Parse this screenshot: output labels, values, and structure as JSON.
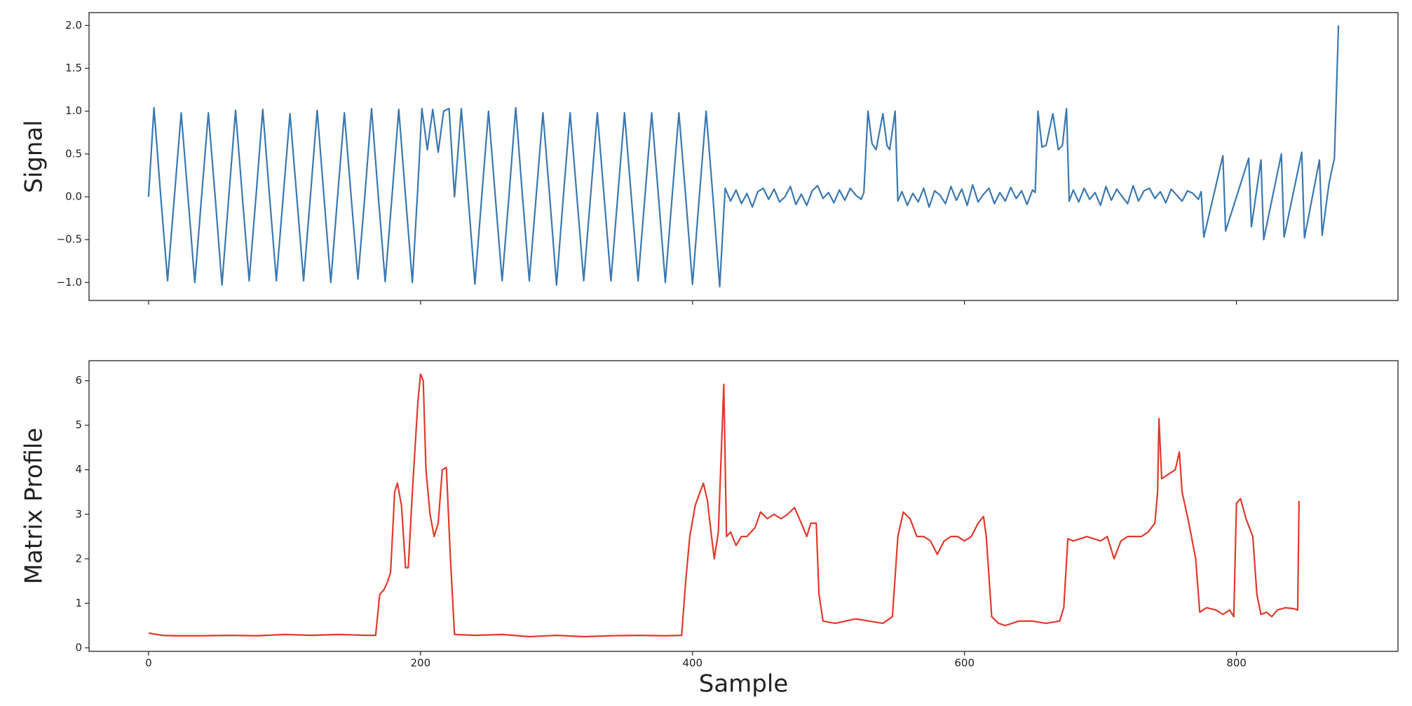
{
  "chart_data": [
    {
      "type": "line",
      "ylabel": "Signal",
      "color": "#3a78b0",
      "xlim": [
        -43.75,
        918.75
      ],
      "xticks": [
        0,
        200,
        400,
        600,
        800
      ],
      "xtick_labels": false,
      "ylim": [
        -1.21,
        2.15
      ],
      "yticks": [
        {
          "value": -1.0,
          "label": "−1.0"
        },
        {
          "value": -0.5,
          "label": "−0.5"
        },
        {
          "value": 0,
          "label": "0.0"
        },
        {
          "value": 0.5,
          "label": "0.5"
        },
        {
          "value": 1.0,
          "label": "1.0"
        },
        {
          "value": 1.5,
          "label": "1.5"
        },
        {
          "value": 2.0,
          "label": "2.0"
        }
      ],
      "x": [
        0,
        4,
        9,
        14,
        19,
        24,
        29,
        34,
        39,
        44,
        49,
        54,
        59,
        64,
        69,
        74,
        79,
        84,
        89,
        94,
        99,
        104,
        109,
        114,
        119,
        124,
        129,
        134,
        139,
        144,
        149,
        154,
        159,
        164,
        169,
        174,
        179,
        184,
        189,
        194,
        198,
        201,
        205,
        209,
        213,
        217,
        221,
        225,
        230,
        235,
        240,
        245,
        250,
        255,
        260,
        265,
        270,
        275,
        280,
        285,
        290,
        295,
        300,
        305,
        310,
        315,
        320,
        325,
        330,
        335,
        340,
        345,
        350,
        355,
        360,
        365,
        370,
        375,
        380,
        385,
        390,
        395,
        400,
        405,
        410,
        415,
        420,
        424,
        428,
        432,
        436,
        440,
        444,
        448,
        452,
        456,
        460,
        464,
        468,
        472,
        476,
        480,
        484,
        488,
        492,
        496,
        500,
        504,
        508,
        512,
        516,
        520,
        524,
        526,
        529,
        532,
        535,
        540,
        543,
        545,
        549,
        551,
        554,
        558,
        562,
        566,
        570,
        574,
        578,
        582,
        586,
        590,
        594,
        598,
        602,
        606,
        610,
        614,
        618,
        622,
        626,
        630,
        634,
        638,
        642,
        646,
        650,
        652,
        654,
        657,
        660,
        665,
        669,
        672,
        675,
        677,
        680,
        684,
        688,
        692,
        696,
        700,
        704,
        708,
        712,
        716,
        720,
        724,
        728,
        732,
        736,
        740,
        744,
        748,
        752,
        756,
        760,
        764,
        768,
        772,
        774,
        776,
        790,
        792,
        809,
        811,
        818,
        820,
        833,
        835,
        848,
        850,
        861,
        863,
        868,
        872,
        875
      ],
      "values": [
        0,
        1.04,
        0,
        -0.98,
        0,
        0.98,
        0,
        -1.0,
        0,
        0.98,
        0,
        -1.03,
        0,
        1.01,
        0,
        -0.98,
        0,
        1.02,
        0,
        -0.98,
        0,
        0.97,
        0,
        -0.98,
        0,
        1.01,
        0,
        -1.0,
        0,
        0.98,
        0,
        -0.96,
        0,
        1.03,
        0,
        -0.99,
        0,
        1.02,
        0,
        -1.0,
        0.1,
        1.03,
        0.55,
        1.02,
        0.52,
        1.0,
        1.03,
        0.0,
        1.03,
        0,
        -1.02,
        0,
        1.0,
        0,
        -0.98,
        0,
        1.04,
        0,
        -0.98,
        0,
        0.98,
        0,
        -1.03,
        0,
        0.98,
        0,
        -0.98,
        0,
        0.98,
        0,
        -0.98,
        0,
        0.98,
        0,
        -0.98,
        0,
        0.98,
        0,
        -1.0,
        0,
        0.98,
        0,
        -1.02,
        0,
        1.0,
        0,
        -1.05,
        0.1,
        -0.05,
        0.08,
        -0.08,
        0.04,
        -0.12,
        0.06,
        0.1,
        -0.03,
        0.09,
        -0.06,
        0.0,
        0.12,
        -0.09,
        0.03,
        -0.1,
        0.07,
        0.13,
        -0.02,
        0.05,
        -0.07,
        0.08,
        -0.04,
        0.1,
        0.02,
        -0.03,
        0.05,
        1.0,
        0.62,
        0.55,
        0.97,
        0.6,
        0.55,
        1.0,
        -0.05,
        0.06,
        -0.1,
        0.04,
        -0.06,
        0.1,
        -0.12,
        0.07,
        0.02,
        -0.08,
        0.12,
        -0.04,
        0.09,
        -0.1,
        0.14,
        -0.06,
        0.03,
        0.1,
        -0.08,
        0.05,
        -0.05,
        0.11,
        -0.02,
        0.07,
        -0.09,
        0.08,
        0.05,
        1.0,
        0.58,
        0.6,
        0.97,
        0.55,
        0.6,
        1.03,
        -0.05,
        0.08,
        -0.06,
        0.1,
        -0.03,
        0.05,
        -0.1,
        0.12,
        -0.04,
        0.09,
        0.0,
        -0.08,
        0.13,
        -0.05,
        0.07,
        0.1,
        -0.02,
        0.06,
        -0.07,
        0.09,
        0.02,
        -0.05,
        0.07,
        0.04,
        -0.03,
        0.06,
        -0.47,
        0.48,
        -0.4,
        0.45,
        -0.35,
        0.43,
        -0.5,
        0.5,
        -0.47,
        0.52,
        -0.48,
        0.43,
        -0.45,
        0.15,
        0.45,
        2.0
      ]
    },
    {
      "type": "line",
      "ylabel": "Matrix Profile",
      "xlabel": "Sample",
      "color": "#e0392b",
      "xlim": [
        -43.75,
        918.75
      ],
      "xticks": [
        0,
        200,
        400,
        600,
        800
      ],
      "ylim": [
        -0.08,
        6.45
      ],
      "yticks": [
        0,
        1,
        2,
        3,
        4,
        5,
        6
      ],
      "x": [
        0,
        10,
        20,
        40,
        60,
        80,
        100,
        120,
        140,
        160,
        167,
        170,
        173,
        176,
        178,
        181,
        183,
        186,
        189,
        191,
        194,
        198,
        200,
        202,
        204,
        207,
        210,
        213,
        216,
        219,
        222,
        225,
        240,
        260,
        280,
        300,
        320,
        340,
        360,
        380,
        392,
        395,
        398,
        402,
        408,
        411,
        414,
        416,
        419,
        423,
        425,
        428,
        432,
        436,
        440,
        446,
        450,
        455,
        460,
        465,
        470,
        475,
        480,
        484,
        487,
        491,
        493,
        496,
        505,
        520,
        530,
        540,
        547,
        551,
        555,
        560,
        565,
        570,
        575,
        580,
        585,
        590,
        595,
        600,
        605,
        610,
        614,
        616,
        620,
        625,
        630,
        640,
        650,
        660,
        670,
        673,
        676,
        680,
        690,
        700,
        705,
        710,
        715,
        720,
        730,
        735,
        740,
        742,
        743,
        745,
        750,
        755,
        758,
        760,
        765,
        770,
        773,
        778,
        785,
        790,
        795,
        798,
        800,
        803,
        807,
        812,
        815,
        818,
        822,
        826,
        830,
        836,
        842,
        845,
        846
      ],
      "values": [
        0.33,
        0.28,
        0.27,
        0.27,
        0.28,
        0.27,
        0.3,
        0.28,
        0.3,
        0.28,
        0.28,
        1.2,
        1.3,
        1.5,
        1.7,
        3.5,
        3.7,
        3.2,
        1.8,
        1.8,
        3.5,
        5.5,
        6.15,
        6.0,
        4.0,
        3.0,
        2.5,
        2.8,
        4.0,
        4.05,
        2.0,
        0.3,
        0.28,
        0.3,
        0.25,
        0.28,
        0.25,
        0.27,
        0.28,
        0.27,
        0.28,
        1.5,
        2.5,
        3.2,
        3.7,
        3.3,
        2.5,
        2.0,
        2.6,
        5.92,
        2.5,
        2.6,
        2.3,
        2.5,
        2.5,
        2.7,
        3.05,
        2.9,
        3.0,
        2.9,
        3.0,
        3.15,
        2.8,
        2.5,
        2.8,
        2.8,
        1.2,
        0.6,
        0.55,
        0.65,
        0.6,
        0.55,
        0.7,
        2.5,
        3.05,
        2.9,
        2.5,
        2.5,
        2.4,
        2.1,
        2.4,
        2.5,
        2.5,
        2.4,
        2.5,
        2.8,
        2.95,
        2.5,
        0.7,
        0.55,
        0.5,
        0.6,
        0.6,
        0.55,
        0.6,
        0.9,
        2.45,
        2.4,
        2.5,
        2.4,
        2.5,
        2.0,
        2.4,
        2.5,
        2.5,
        2.6,
        2.8,
        3.5,
        5.15,
        3.8,
        3.9,
        4.0,
        4.4,
        3.5,
        2.8,
        2.0,
        0.8,
        0.9,
        0.85,
        0.75,
        0.85,
        0.7,
        3.25,
        3.35,
        2.9,
        2.5,
        1.2,
        0.75,
        0.8,
        0.7,
        0.85,
        0.9,
        0.88,
        0.85,
        3.3
      ]
    }
  ]
}
